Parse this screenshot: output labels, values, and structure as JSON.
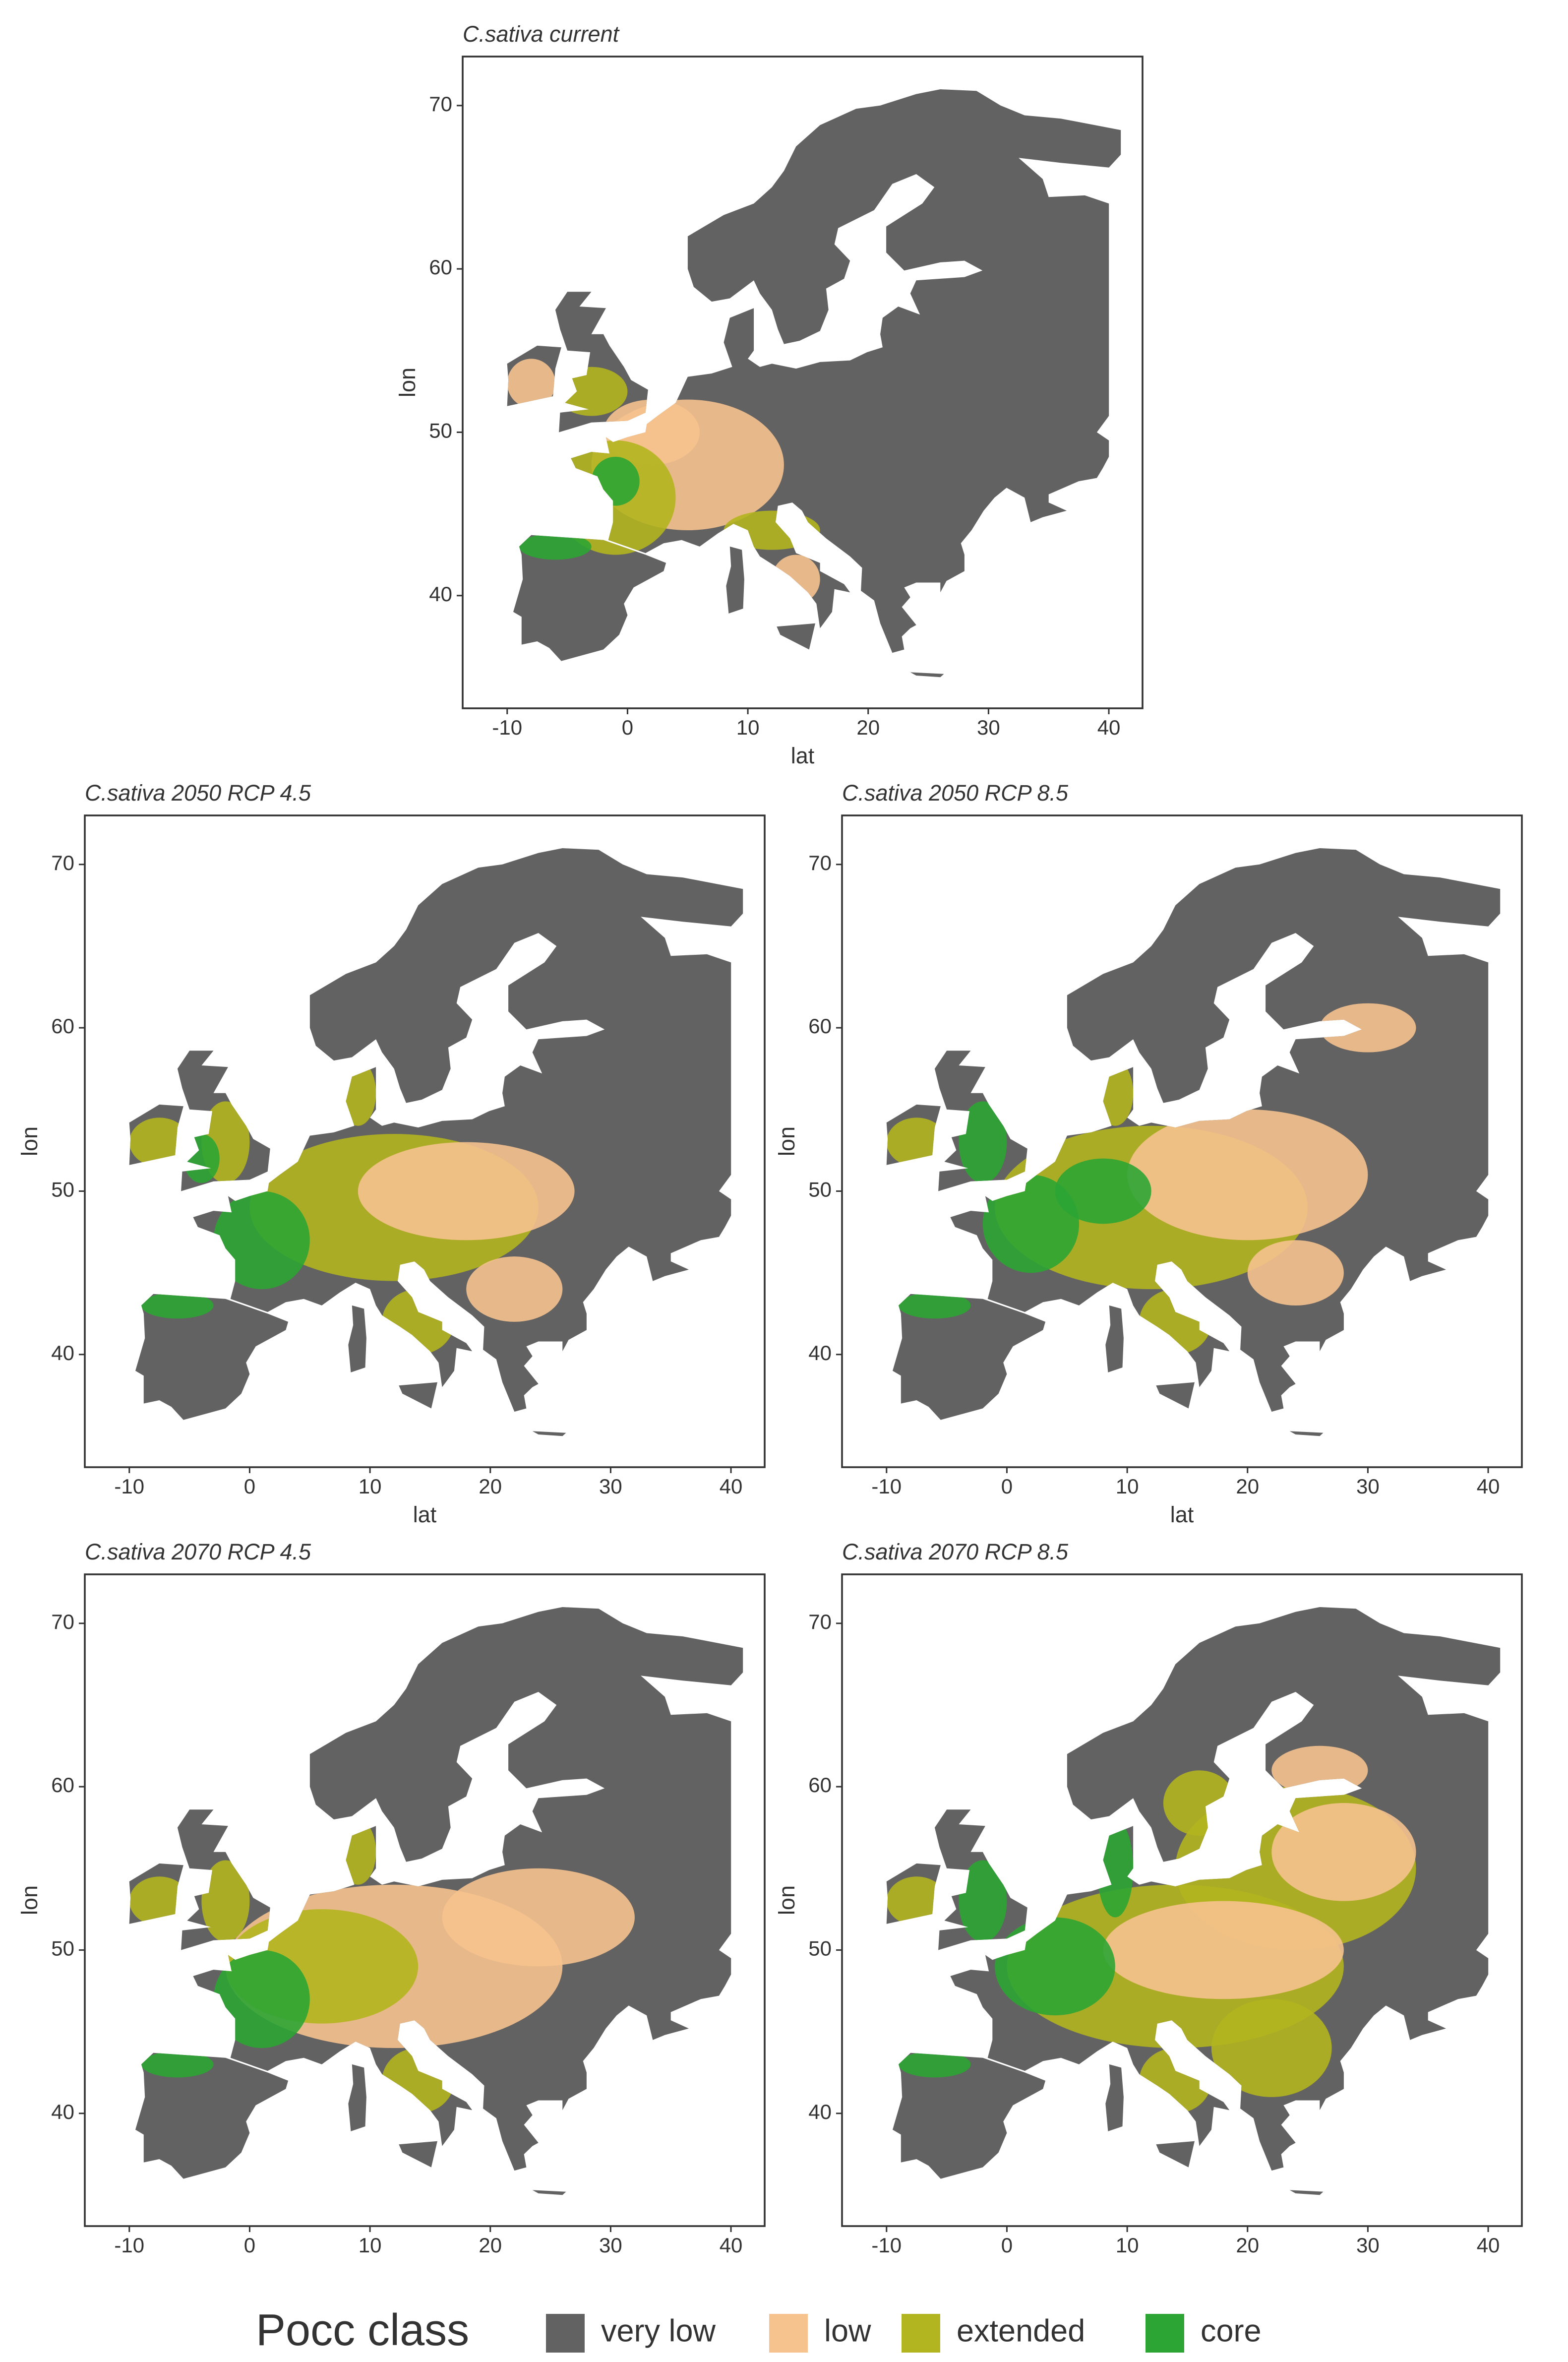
{
  "panels": [
    {
      "title": "C.sativa current",
      "xlabel": "lat",
      "ylabel": "lon",
      "xlim": [
        -13.7,
        42.8
      ],
      "ylim": [
        33.1,
        73
      ],
      "xticks": [
        -10,
        0,
        10,
        20,
        30,
        40
      ],
      "yticks": [
        40,
        50,
        60,
        70
      ]
    },
    {
      "title": "C.sativa 2050 RCP 4.5",
      "xlabel": "lat",
      "ylabel": "lon",
      "xlim": [
        -13.7,
        42.8
      ],
      "ylim": [
        33.1,
        73
      ],
      "xticks": [
        -10,
        0,
        10,
        20,
        30,
        40
      ],
      "yticks": [
        40,
        50,
        60,
        70
      ]
    },
    {
      "title": "C.sativa 2050 RCP 8.5",
      "xlabel": "lat",
      "ylabel": "lon",
      "xlim": [
        -13.7,
        42.8
      ],
      "ylim": [
        33.1,
        73
      ],
      "xticks": [
        -10,
        0,
        10,
        20,
        30,
        40
      ],
      "yticks": [
        40,
        50,
        60,
        70
      ]
    },
    {
      "title": "C.sativa 2070 RCP 4.5",
      "ylabel": "lon",
      "xlim": [
        -13.7,
        42.8
      ],
      "ylim": [
        33.1,
        73
      ],
      "xticks": [
        -10,
        0,
        10,
        20,
        30,
        40
      ],
      "yticks": [
        40,
        50,
        60,
        70
      ]
    },
    {
      "title": "C.sativa 2070 RCP 8.5",
      "ylabel": "lon",
      "xlim": [
        -13.7,
        42.8
      ],
      "ylim": [
        33.1,
        73
      ],
      "xticks": [
        -10,
        0,
        10,
        20,
        30,
        40
      ],
      "yticks": [
        40,
        50,
        60,
        70
      ]
    }
  ],
  "legend": {
    "title": "Pocc class",
    "items": [
      {
        "label": "very low",
        "color": "#626262"
      },
      {
        "label": "low",
        "color": "#f6c28e"
      },
      {
        "label": "extended",
        "color": "#b2b51f"
      },
      {
        "label": "core",
        "color": "#2ca534"
      }
    ]
  }
}
